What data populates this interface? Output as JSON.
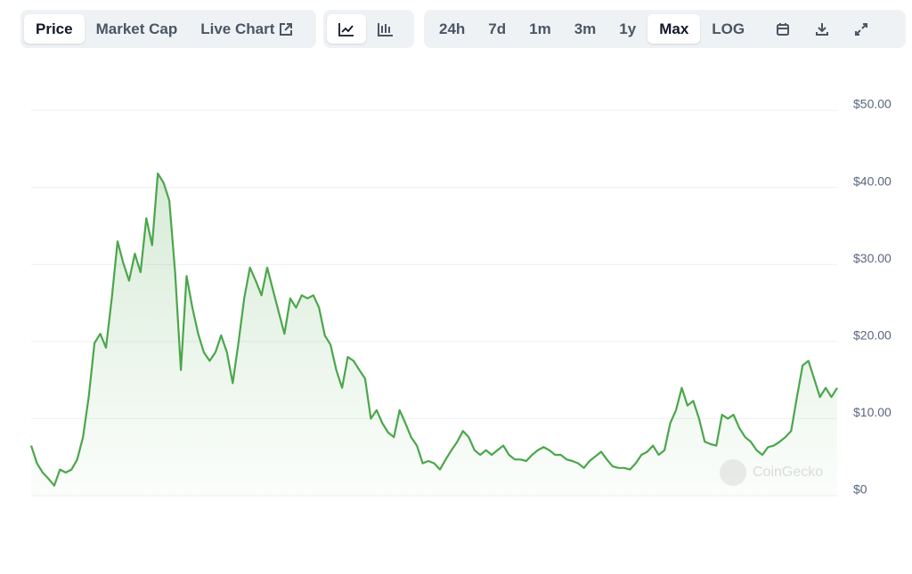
{
  "toolbar": {
    "view_tabs": [
      "Price",
      "Market Cap",
      "Live Chart"
    ],
    "view_selected": 0,
    "ranges": [
      "24h",
      "7d",
      "1m",
      "3m",
      "1y",
      "Max",
      "LOG"
    ],
    "range_selected": 5
  },
  "chart_data": {
    "type": "line",
    "watermark": "CoinGecko",
    "color": "#4ba64b",
    "grid": true,
    "ylim": [
      0,
      50
    ],
    "yticks": [
      {
        "value": 0,
        "label": "$0"
      },
      {
        "value": 10,
        "label": "$10.00"
      },
      {
        "value": 20,
        "label": "$20.00"
      },
      {
        "value": 30,
        "label": "$30.00"
      },
      {
        "value": 40,
        "label": "$40.00"
      },
      {
        "value": 50,
        "label": "$50.00"
      }
    ],
    "values": [
      6.5,
      4.2,
      3,
      2.2,
      1.3,
      3.4,
      3,
      3.4,
      4.7,
      7.6,
      12.8,
      19.8,
      21,
      19.2,
      25.6,
      33,
      30.2,
      27.9,
      31.4,
      29,
      36,
      32.5,
      41.8,
      40.6,
      38.3,
      29,
      16.3,
      28.5,
      24.4,
      21,
      18.6,
      17.5,
      18.6,
      20.8,
      18.6,
      14.6,
      19.8,
      25.6,
      29.6,
      27.9,
      26,
      29.6,
      26.7,
      23.8,
      21,
      25.6,
      24.4,
      26,
      25.6,
      26,
      24.4,
      20.8,
      19.6,
      16.3,
      14,
      18,
      17.5,
      16.3,
      15.2,
      10,
      11.1,
      9.4,
      8.2,
      7.6,
      11.1,
      9.4,
      7.6,
      6.5,
      4.2,
      4.5,
      4.2,
      3.4,
      4.7,
      5.9,
      7,
      8.4,
      7.6,
      5.9,
      5.3,
      5.9,
      5.3,
      5.9,
      6.5,
      5.3,
      4.7,
      4.7,
      4.5,
      5.3,
      5.9,
      6.3,
      5.9,
      5.3,
      5.3,
      4.7,
      4.5,
      4.2,
      3.6,
      4.5,
      5.1,
      5.7,
      4.7,
      3.8,
      3.6,
      3.6,
      3.4,
      4.2,
      5.3,
      5.7,
      6.5,
      5.3,
      5.9,
      9.4,
      11.1,
      14,
      11.7,
      12.3,
      10,
      7,
      6.7,
      6.5,
      10.5,
      10,
      10.5,
      8.8,
      7.6,
      7,
      5.9,
      5.3,
      6.3,
      6.5,
      7,
      7.6,
      8.4,
      12.8,
      16.9,
      17.5,
      15.2,
      12.8,
      14,
      12.8,
      14
    ]
  }
}
